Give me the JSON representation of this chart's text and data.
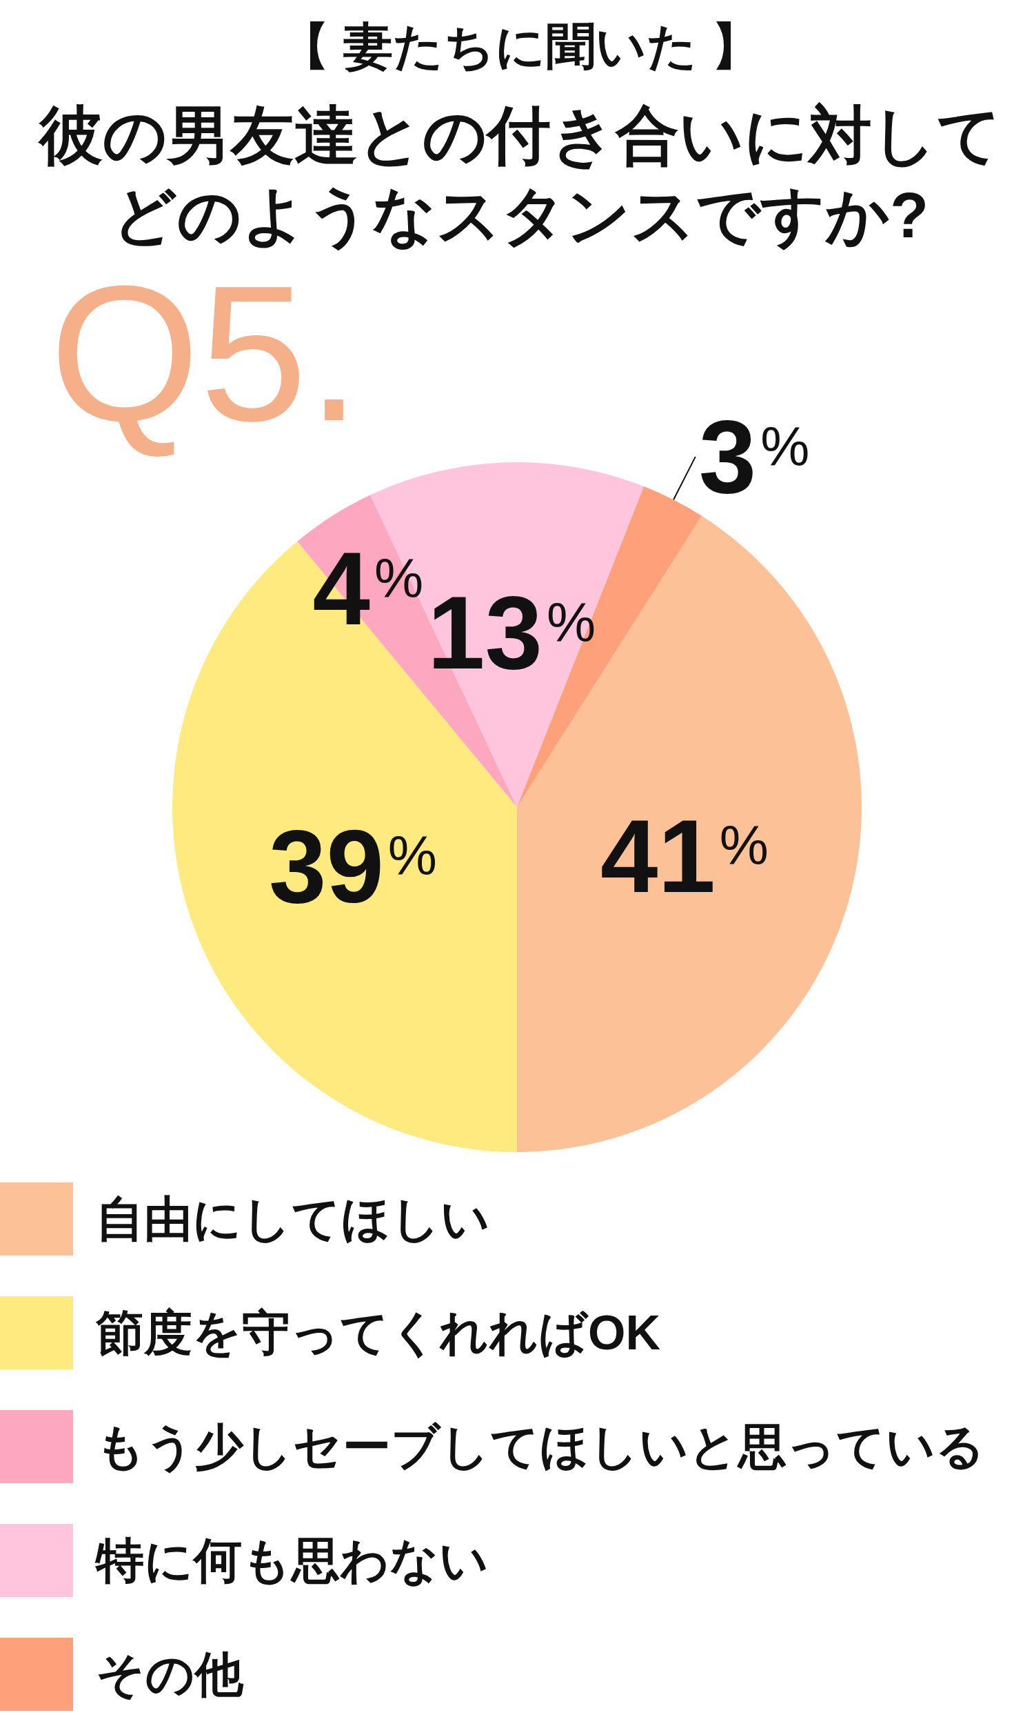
{
  "chart_data": {
    "type": "pie",
    "subtitle": "【 妻たちに聞いた 】",
    "title": "彼の男友達との付き合いに対してどのようなスタンスですか?",
    "annotations": [
      "Q5."
    ],
    "categories": [
      "自由にしてほしい",
      "節度を守ってくれればOK",
      "もう少しセーブしてほしいと思っている",
      "特に何も思わない",
      "その他"
    ],
    "values": [
      41,
      39,
      4,
      13,
      3
    ],
    "colors": [
      "#fcc196",
      "#feea7e",
      "#fea7c0",
      "#fec5dc",
      "#fea07a"
    ],
    "value_labels": [
      "41%",
      "39%",
      "4%",
      "13%",
      "3%"
    ],
    "legend": "bottom left"
  }
}
